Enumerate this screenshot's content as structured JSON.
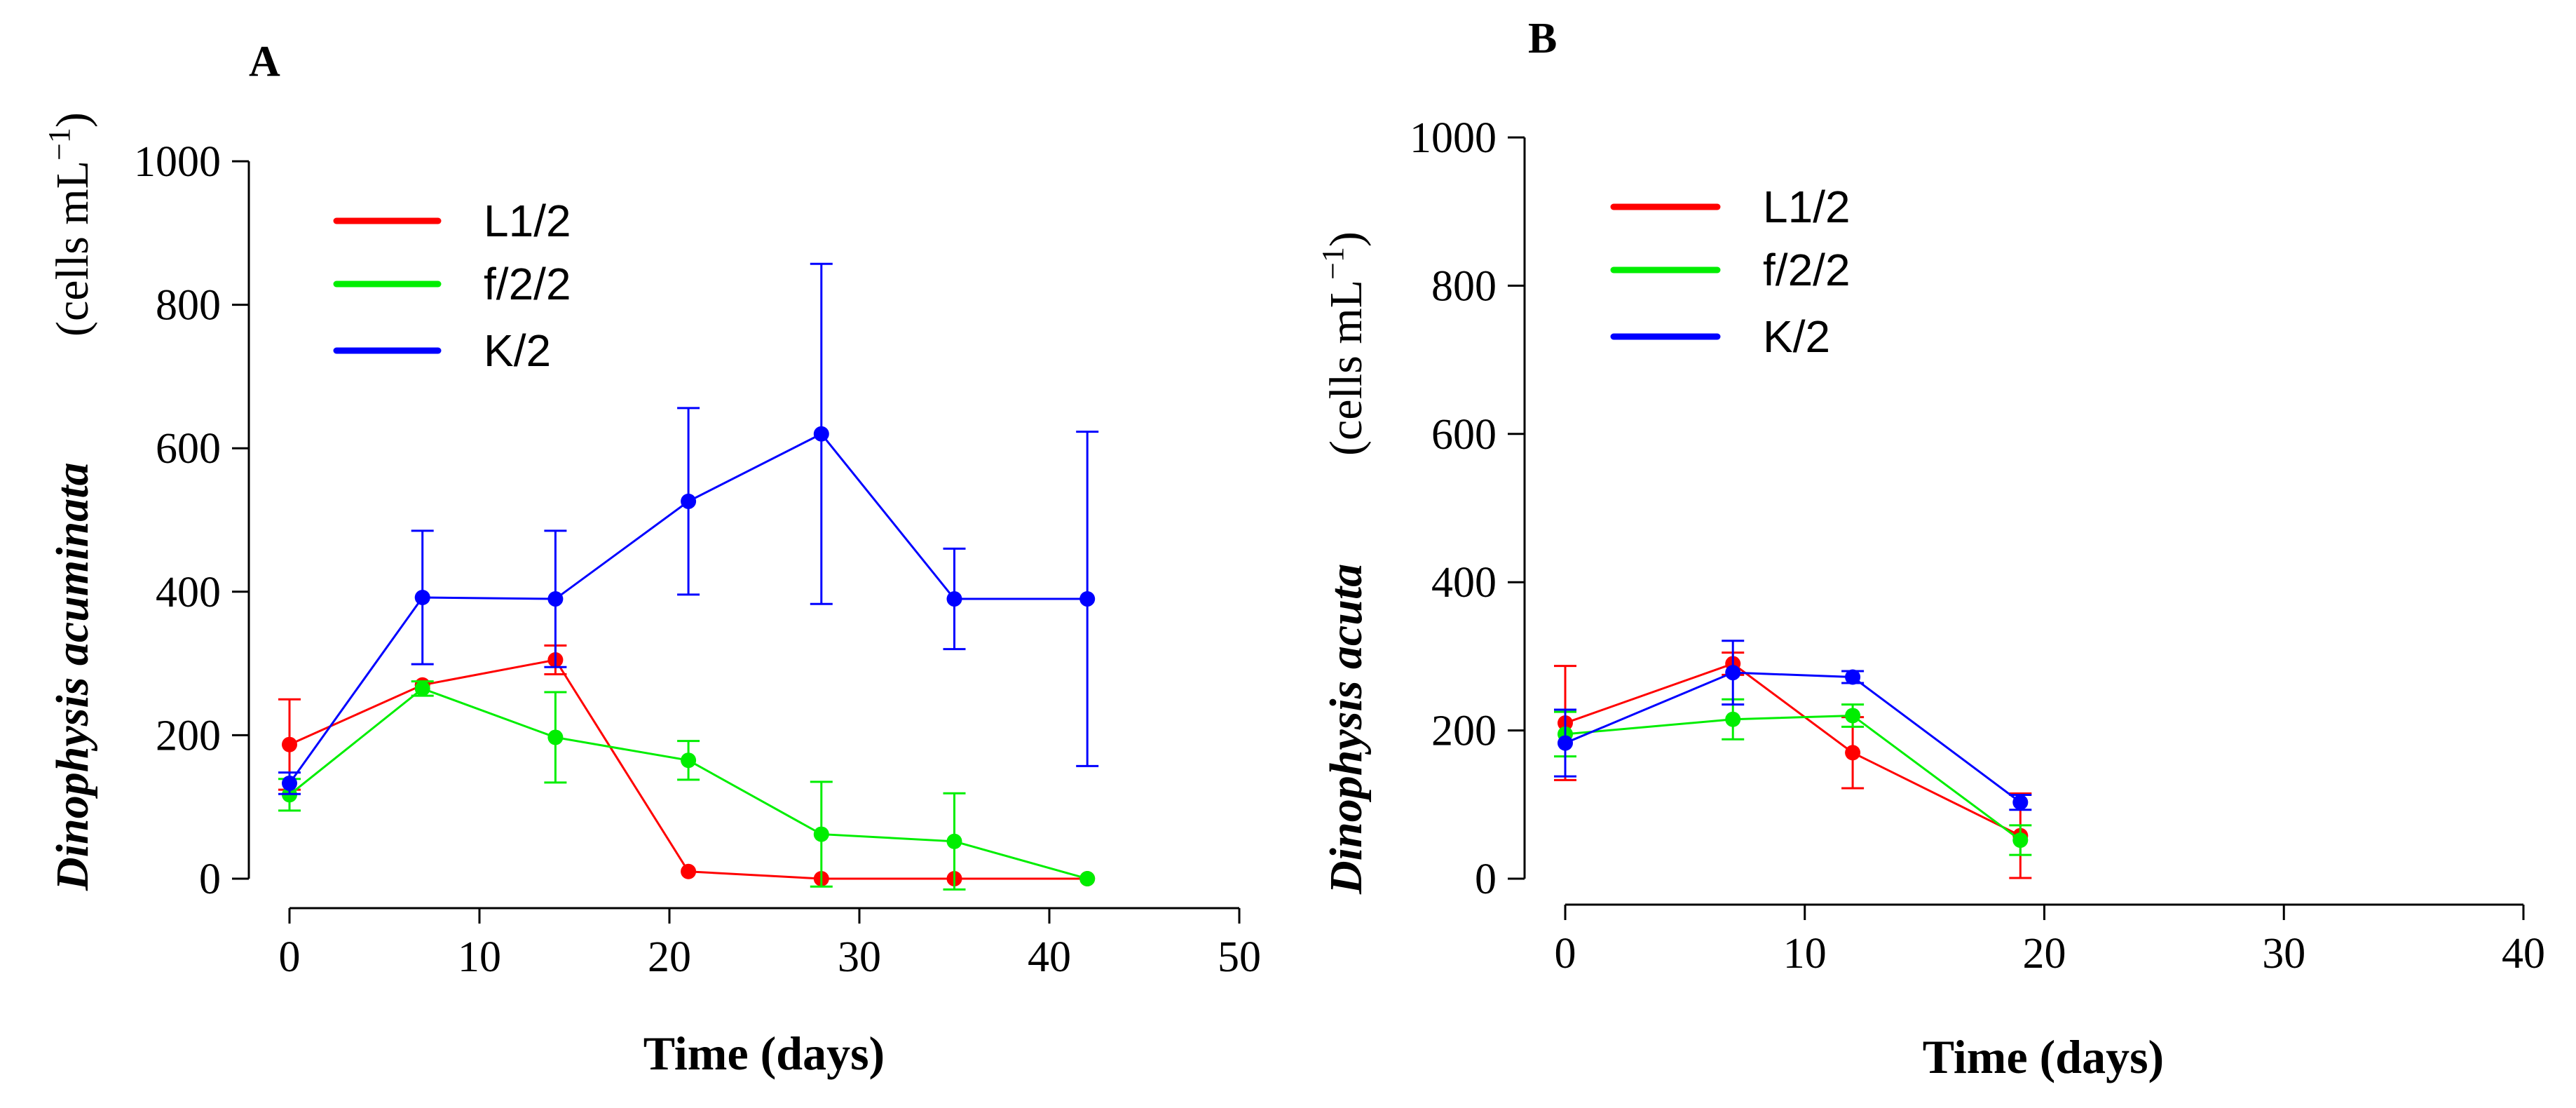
{
  "chart_data": [
    {
      "type": "line",
      "panel_label": "A",
      "title": "",
      "xlabel": "Time (days)",
      "ylabel_italic_regular": "Dinophysis ",
      "ylabel_italic_bold": "acuminata",
      "ylabel_units": "(cells  mL",
      "ylabel_units_exp": "−1",
      "ylabel_units_close": ")",
      "xlim": [
        0,
        50
      ],
      "ylim": [
        0,
        1000
      ],
      "xticks": [
        0,
        10,
        20,
        30,
        40,
        50
      ],
      "yticks": [
        0,
        200,
        400,
        600,
        800,
        1000
      ],
      "legend": [
        "L1/2",
        "f/2/2",
        "K/2"
      ],
      "series": [
        {
          "name": "L1/2",
          "color": "#ff0000",
          "x": [
            0,
            7,
            14,
            21,
            28,
            35,
            42
          ],
          "y": [
            187,
            270,
            305,
            10,
            0,
            0,
            0
          ],
          "err": [
            63,
            0,
            20,
            0,
            0,
            0,
            0
          ]
        },
        {
          "name": "f/2/2",
          "color": "#00ee00",
          "x": [
            0,
            7,
            14,
            21,
            28,
            35,
            42
          ],
          "y": [
            117,
            265,
            197,
            165,
            62,
            52,
            0
          ],
          "err": [
            22,
            10,
            63,
            27,
            73,
            67,
            0
          ]
        },
        {
          "name": "K/2",
          "color": "#0000ff",
          "x": [
            0,
            7,
            14,
            21,
            28,
            35,
            42
          ],
          "y": [
            133,
            392,
            390,
            526,
            620,
            390,
            390
          ],
          "err": [
            15,
            93,
            95,
            130,
            237,
            70,
            233
          ]
        }
      ]
    },
    {
      "type": "line",
      "panel_label": "B",
      "title": "",
      "xlabel": "Time (days)",
      "ylabel_italic_regular": "Dinophysis ",
      "ylabel_italic_bold": "acuta",
      "ylabel_units": "(cells  mL",
      "ylabel_units_exp": "−1",
      "ylabel_units_close": ")",
      "xlim": [
        0,
        40
      ],
      "ylim": [
        0,
        1000
      ],
      "xticks": [
        0,
        10,
        20,
        30,
        40
      ],
      "yticks": [
        0,
        200,
        400,
        600,
        800,
        1000
      ],
      "legend": [
        "L1/2",
        "f/2/2",
        "K/2"
      ],
      "series": [
        {
          "name": "L1/2",
          "color": "#ff0000",
          "x": [
            0,
            7,
            12,
            19
          ],
          "y": [
            210,
            290,
            170,
            58
          ],
          "err": [
            77,
            15,
            48,
            57
          ]
        },
        {
          "name": "f/2/2",
          "color": "#00ee00",
          "x": [
            0,
            7,
            12,
            19
          ],
          "y": [
            195,
            215,
            220,
            52
          ],
          "err": [
            30,
            27,
            15,
            20
          ]
        },
        {
          "name": "K/2",
          "color": "#0000ff",
          "x": [
            0,
            7,
            12,
            19
          ],
          "y": [
            183,
            278,
            272,
            103
          ],
          "err": [
            45,
            43,
            8,
            10
          ]
        }
      ]
    }
  ]
}
